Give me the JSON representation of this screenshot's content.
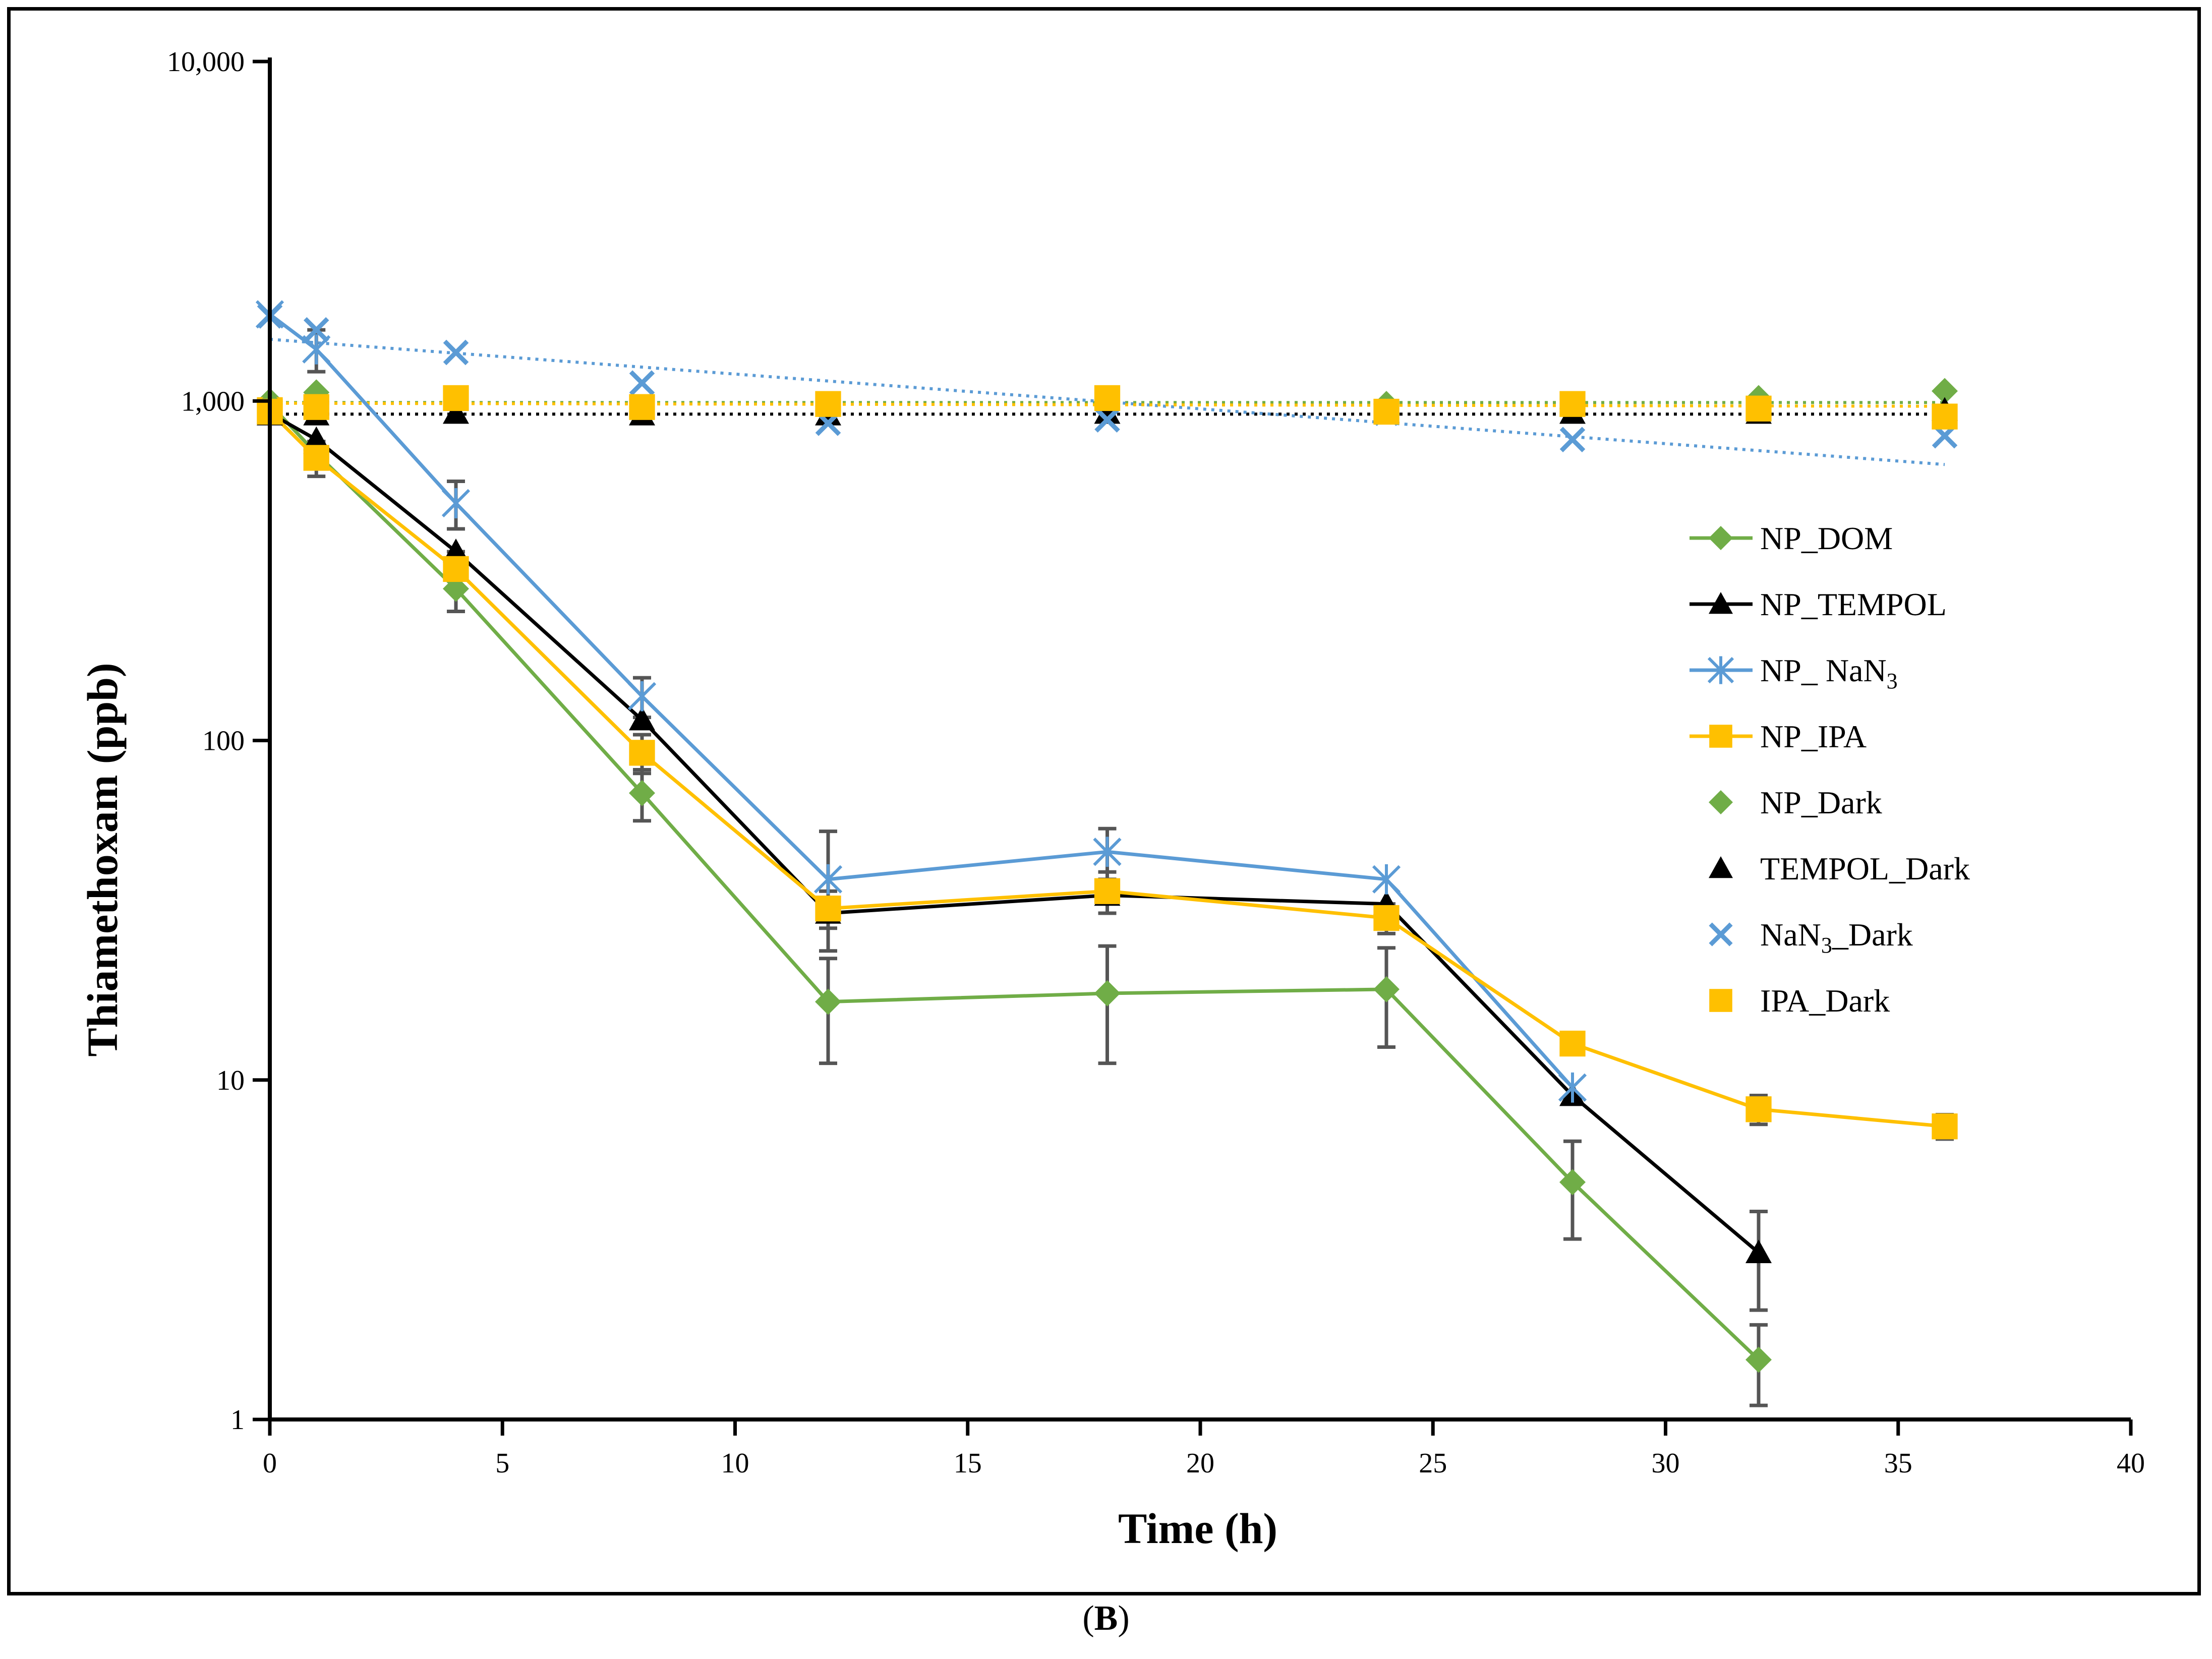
{
  "caption": {
    "open": "(",
    "letter": "B",
    "close": ")"
  },
  "chart_data": {
    "type": "line",
    "title": "",
    "xlabel": "Time (h)",
    "ylabel": "Thiamethoxam (ppb)",
    "xlim": [
      0,
      40
    ],
    "ylim": [
      1,
      10000
    ],
    "yscale": "log",
    "grid": false,
    "legend_position": "right",
    "x_ticks": [
      0,
      5,
      10,
      15,
      20,
      25,
      30,
      35,
      40
    ],
    "x_tick_labels": [
      "0",
      "5",
      "10",
      "15",
      "20",
      "25",
      "30",
      "35",
      "40"
    ],
    "y_ticks": [
      1,
      10,
      100,
      1000,
      10000
    ],
    "y_tick_labels": [
      "1",
      "10",
      "100",
      "1,000",
      "10,000"
    ],
    "colors": {
      "green": "#70ad47",
      "black": "#000000",
      "blue": "#5b9bd5",
      "yellow": "#ffc000",
      "error": "#555555"
    },
    "series": [
      {
        "name": "NP_DOM",
        "kind": "line",
        "marker": "diamond",
        "color": "#70ad47",
        "x": [
          0,
          1,
          4,
          8,
          12,
          18,
          24,
          28,
          32
        ],
        "y": [
          980,
          700,
          280,
          70,
          17,
          18,
          18.5,
          5,
          1.5
        ],
        "err": [
          0,
          60,
          40,
          12,
          5.8,
          6.8,
          6,
          1.6,
          0.4
        ]
      },
      {
        "name": "NP_TEMPOL",
        "kind": "line",
        "marker": "triangle",
        "color": "#000000",
        "x": [
          0,
          1,
          4,
          8,
          12,
          18,
          24,
          28,
          32
        ],
        "y": [
          920,
          770,
          360,
          115,
          31,
          35,
          33,
          9,
          3.1
        ],
        "err": [
          0,
          0,
          0,
          0,
          0,
          0,
          0,
          0,
          1
        ]
      },
      {
        "name": "NP_NaN3",
        "kind": "line",
        "marker": "star",
        "color": "#5b9bd5",
        "x": [
          0,
          1,
          4,
          8,
          12,
          18,
          24,
          28
        ],
        "y": [
          1800,
          1420,
          500,
          135,
          39,
          47,
          39,
          9.5
        ],
        "err": [
          0,
          200,
          80,
          18,
          15,
          8,
          0,
          0
        ]
      },
      {
        "name": "NP_IPA",
        "kind": "line",
        "marker": "square",
        "color": "#ffc000",
        "x": [
          0,
          1,
          4,
          8,
          12,
          18,
          24,
          28,
          32,
          36
        ],
        "y": [
          930,
          680,
          320,
          92,
          32,
          36,
          30,
          12.8,
          8.2,
          7.3
        ],
        "err": [
          0,
          80,
          40,
          12,
          4,
          5,
          3,
          0,
          0.8,
          0.6
        ]
      },
      {
        "name": "NP_Dark",
        "kind": "scatter",
        "marker": "diamond",
        "color": "#70ad47",
        "x": [
          0,
          1,
          12,
          18,
          24,
          28,
          32,
          36
        ],
        "y": [
          1000,
          1060,
          940,
          960,
          980,
          950,
          1020,
          1070
        ],
        "trend": [
          990,
          990
        ]
      },
      {
        "name": "TEMPOL_Dark",
        "kind": "scatter",
        "marker": "triangle",
        "color": "#000000",
        "x": [
          0,
          1,
          4,
          8,
          12,
          18,
          24,
          28,
          32,
          36
        ],
        "y": [
          910,
          910,
          920,
          910,
          910,
          920,
          930,
          920,
          920,
          940
        ],
        "trend": [
          915,
          915
        ]
      },
      {
        "name": "NaN3_Dark",
        "kind": "scatter",
        "marker": "x",
        "color": "#5b9bd5",
        "x": [
          0,
          1,
          4,
          8,
          12,
          18,
          24,
          28,
          36
        ],
        "y": [
          1780,
          1620,
          1390,
          1130,
          860,
          880,
          920,
          770,
          790
        ],
        "trend": [
          1520,
          650
        ]
      },
      {
        "name": "IPA_Dark",
        "kind": "scatter",
        "marker": "square",
        "color": "#ffc000",
        "x": [
          0,
          1,
          4,
          8,
          12,
          18,
          24,
          28,
          32,
          36
        ],
        "y": [
          940,
          960,
          1020,
          960,
          980,
          1020,
          930,
          980,
          950,
          900
        ],
        "trend": [
          985,
          965
        ]
      }
    ],
    "legend": [
      {
        "series": "NP_DOM",
        "label": "NP_DOM"
      },
      {
        "series": "NP_TEMPOL",
        "label": "NP_TEMPOL"
      },
      {
        "series": "NP_NaN3",
        "label": "NP_ NaN",
        "sub": "3"
      },
      {
        "series": "NP_IPA",
        "label": "NP_IPA"
      },
      {
        "series": "NP_Dark",
        "label": "NP_Dark"
      },
      {
        "series": "TEMPOL_Dark",
        "label": "TEMPOL_Dark"
      },
      {
        "series": "NaN3_Dark",
        "label": "NaN",
        "sub": "3",
        "suffix": "_Dark"
      },
      {
        "series": "IPA_Dark",
        "label": "IPA_Dark"
      }
    ]
  }
}
